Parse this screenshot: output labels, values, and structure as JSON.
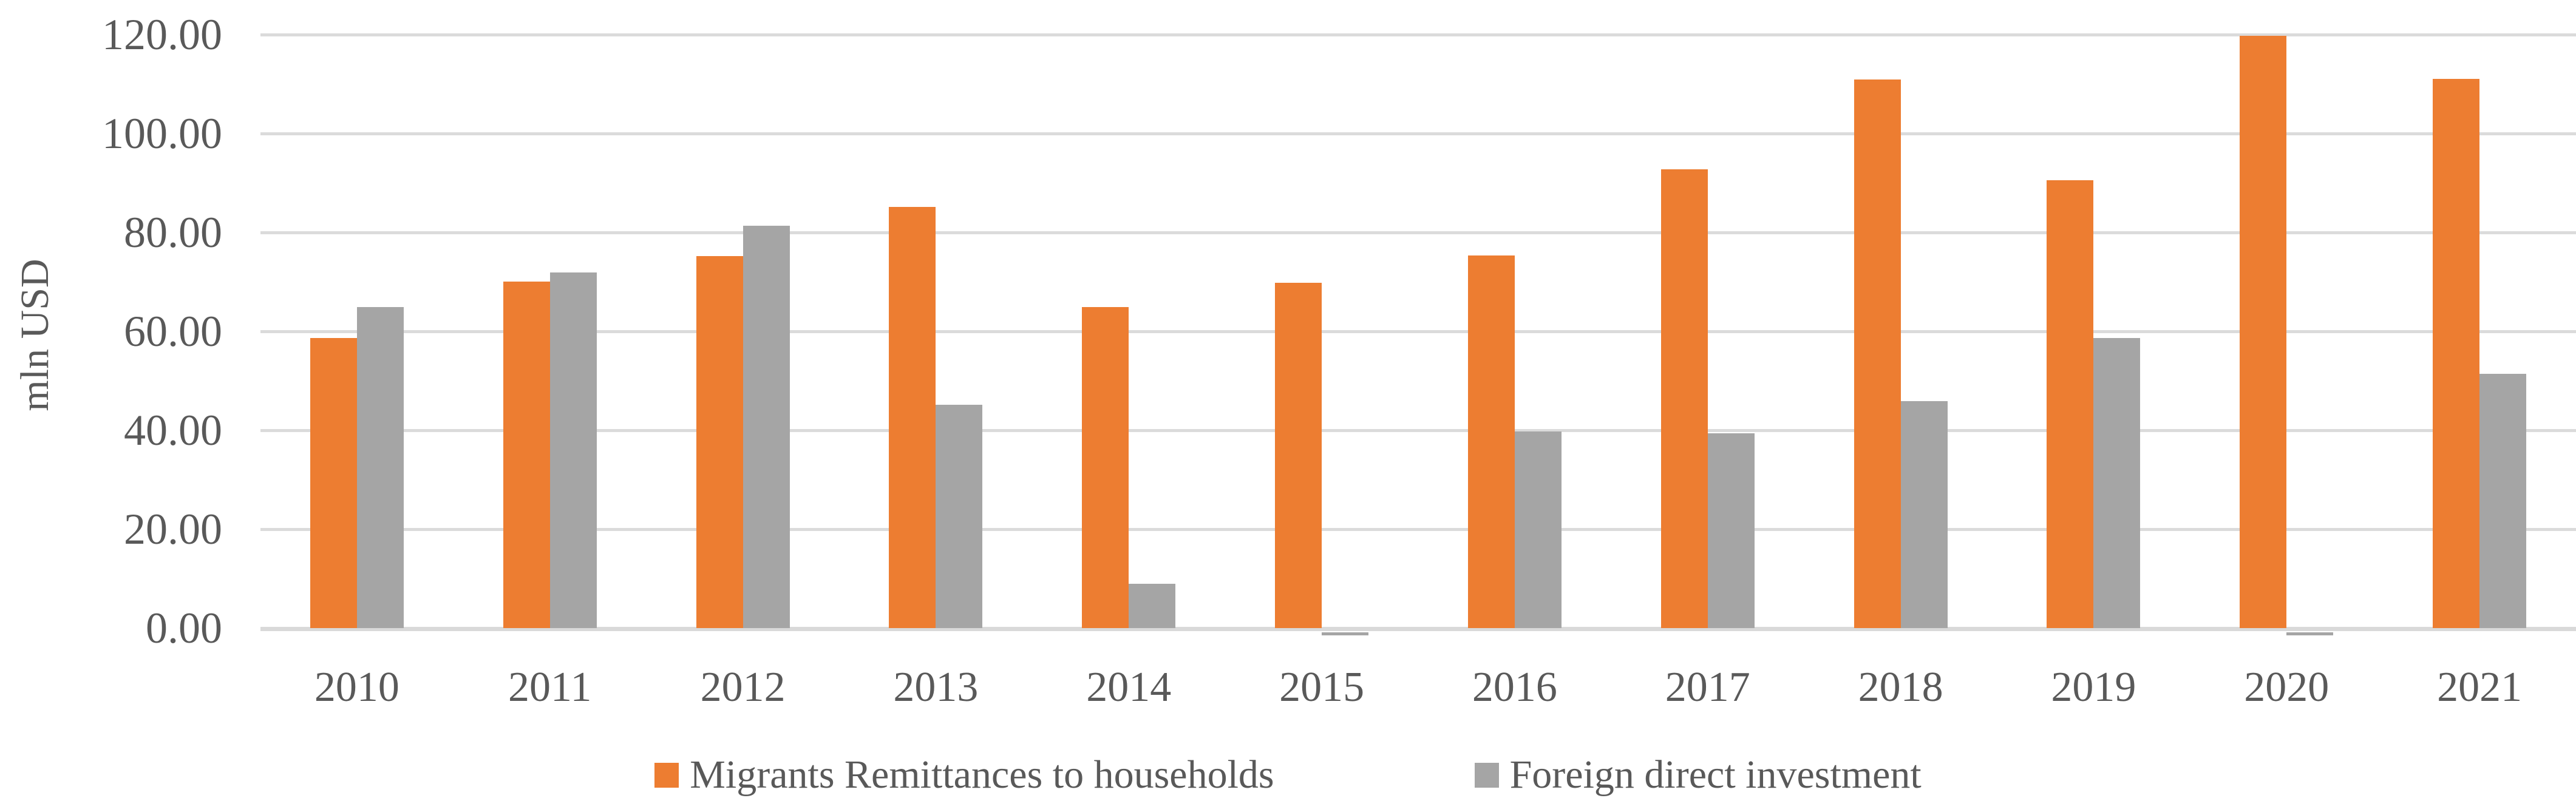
{
  "chart_data": {
    "type": "bar",
    "title": "",
    "xlabel": "",
    "ylabel": "mln USD",
    "categories": [
      "2010",
      "2011",
      "2012",
      "2013",
      "2014",
      "2015",
      "2016",
      "2017",
      "2018",
      "2019",
      "2020",
      "2021"
    ],
    "series": [
      {
        "name": "Migrants Remittances to households",
        "color": "#ED7D31",
        "values": [
          58.6,
          70.0,
          75.2,
          85.1,
          64.9,
          69.8,
          75.3,
          92.8,
          110.9,
          90.5,
          119.8,
          111.0
        ]
      },
      {
        "name": "Foreign direct investment",
        "color": "#A5A5A5",
        "values": [
          64.9,
          71.9,
          81.4,
          45.1,
          9.0,
          -0.6,
          39.8,
          39.4,
          45.9,
          58.7,
          -0.6,
          51.4
        ]
      }
    ],
    "ylim": [
      0,
      120
    ],
    "ytick_step": 20,
    "ytick_labels": [
      "0.00",
      "20.00",
      "40.00",
      "60.00",
      "80.00",
      "100.00",
      "120.00"
    ],
    "grid": true,
    "legend_position": "bottom"
  },
  "colors": {
    "background": "#FFFFFF",
    "gridline": "#DBDBDB",
    "axis_line": "#D9D9D9",
    "text": "#595959",
    "series_remittances": "#ED7D31",
    "series_fdi": "#A5A5A5"
  }
}
